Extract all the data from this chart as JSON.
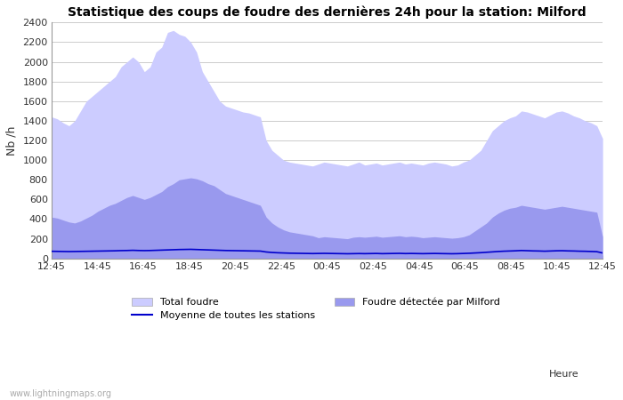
{
  "title": "Statistique des coups de foudre des dernières 24h pour la station: Milford",
  "xlabel": "Heure",
  "ylabel": "Nb /h",
  "xlim": [
    0,
    96
  ],
  "ylim": [
    0,
    2400
  ],
  "yticks": [
    0,
    200,
    400,
    600,
    800,
    1000,
    1200,
    1400,
    1600,
    1800,
    2000,
    2200,
    2400
  ],
  "xtick_labels": [
    "12:45",
    "14:45",
    "16:45",
    "18:45",
    "20:45",
    "22:45",
    "00:45",
    "02:45",
    "04:45",
    "06:45",
    "08:45",
    "10:45",
    "12:45"
  ],
  "xtick_positions": [
    0,
    8,
    16,
    24,
    32,
    40,
    48,
    56,
    64,
    72,
    80,
    88,
    96
  ],
  "color_total": "#ccccff",
  "color_milford": "#9999ee",
  "color_moyenne": "#0000cc",
  "bg_color": "#ffffff",
  "grid_color": "#cccccc",
  "watermark": "www.lightningmaps.org",
  "legend_total": "Total foudre",
  "legend_milford": "Foudre détectée par Milford",
  "legend_moyenne": "Moyenne de toutes les stations",
  "total_foudre": [
    1440,
    1420,
    1380,
    1350,
    1400,
    1500,
    1600,
    1650,
    1700,
    1750,
    1800,
    1850,
    1950,
    2000,
    2050,
    2000,
    1900,
    1950,
    2100,
    2150,
    2300,
    2320,
    2280,
    2260,
    2200,
    2100,
    1900,
    1800,
    1700,
    1600,
    1550,
    1530,
    1510,
    1490,
    1480,
    1460,
    1440,
    1200,
    1100,
    1050,
    1000,
    980,
    970,
    960,
    950,
    940,
    960,
    980,
    970,
    960,
    950,
    940,
    960,
    980,
    950,
    960,
    970,
    950,
    960,
    970,
    980,
    960,
    970,
    960,
    950,
    970,
    980,
    970,
    960,
    940,
    950,
    980,
    1000,
    1050,
    1100,
    1200,
    1300,
    1350,
    1400,
    1430,
    1450,
    1500,
    1490,
    1470,
    1450,
    1430,
    1460,
    1490,
    1500,
    1480,
    1450,
    1430,
    1400,
    1380,
    1350,
    1220
  ],
  "milford_foudre": [
    420,
    410,
    390,
    370,
    360,
    380,
    410,
    440,
    480,
    510,
    540,
    560,
    590,
    620,
    640,
    620,
    600,
    620,
    650,
    680,
    730,
    760,
    800,
    810,
    820,
    810,
    790,
    760,
    740,
    700,
    660,
    640,
    620,
    600,
    580,
    560,
    540,
    420,
    360,
    320,
    290,
    270,
    260,
    250,
    240,
    230,
    210,
    220,
    215,
    210,
    205,
    200,
    215,
    220,
    215,
    220,
    225,
    215,
    220,
    225,
    230,
    220,
    225,
    220,
    210,
    215,
    220,
    215,
    210,
    205,
    210,
    220,
    240,
    280,
    320,
    360,
    420,
    460,
    490,
    510,
    520,
    540,
    530,
    520,
    510,
    500,
    510,
    520,
    530,
    520,
    510,
    500,
    490,
    480,
    470,
    220
  ],
  "moyenne": [
    72,
    71,
    70,
    69,
    70,
    71,
    72,
    73,
    74,
    75,
    76,
    77,
    79,
    80,
    82,
    80,
    79,
    80,
    82,
    84,
    86,
    88,
    90,
    91,
    92,
    90,
    88,
    86,
    84,
    82,
    80,
    79,
    78,
    77,
    76,
    75,
    74,
    65,
    60,
    57,
    55,
    53,
    52,
    51,
    50,
    49,
    50,
    51,
    50,
    49,
    48,
    47,
    48,
    49,
    48,
    49,
    50,
    48,
    49,
    50,
    51,
    49,
    50,
    49,
    48,
    49,
    50,
    49,
    48,
    47,
    48,
    50,
    52,
    55,
    58,
    62,
    66,
    70,
    73,
    75,
    77,
    80,
    78,
    76,
    75,
    73,
    75,
    77,
    78,
    76,
    75,
    73,
    72,
    70,
    68,
    55
  ]
}
